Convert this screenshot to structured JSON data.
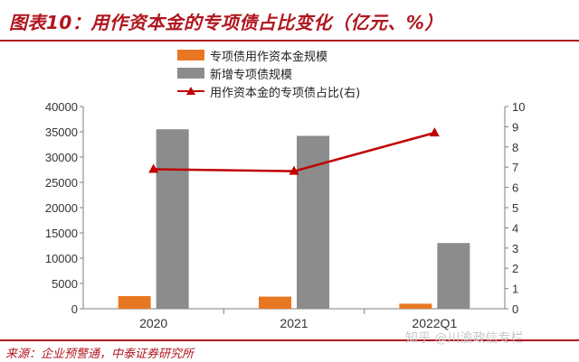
{
  "title": "图表10：用作资本金的专项债占比变化（亿元、%）",
  "source": "来源：企业预警通，中泰证券研究所",
  "watermark": "知乎 @川渝政信专栏",
  "colors": {
    "bar_capital": "#e87722",
    "bar_new": "#8c8c8c",
    "line": "#c00000",
    "title": "#b0161e"
  },
  "chart_data": {
    "type": "bar",
    "categories": [
      "2020",
      "2021",
      "2022Q1"
    ],
    "series": [
      {
        "name": "专项债用作资本金规模",
        "type": "bar",
        "axis": "left",
        "values": [
          2500,
          2400,
          1000
        ]
      },
      {
        "name": "新增专项债规模",
        "type": "bar",
        "axis": "left",
        "values": [
          35500,
          34200,
          13000
        ]
      },
      {
        "name": "用作资本金的专项债占比(右)",
        "type": "line",
        "axis": "right",
        "values": [
          6.9,
          6.8,
          8.7
        ]
      }
    ],
    "y_left": {
      "min": 0,
      "max": 40000,
      "ticks": [
        "0",
        "5000",
        "10000",
        "15000",
        "20000",
        "25000",
        "30000",
        "35000",
        "40000"
      ]
    },
    "y_right": {
      "min": 0,
      "max": 10,
      "ticks": [
        "0",
        "1",
        "2",
        "3",
        "4",
        "5",
        "6",
        "7",
        "8",
        "9",
        "10"
      ]
    },
    "grid": false,
    "legend_position": "top-center"
  }
}
